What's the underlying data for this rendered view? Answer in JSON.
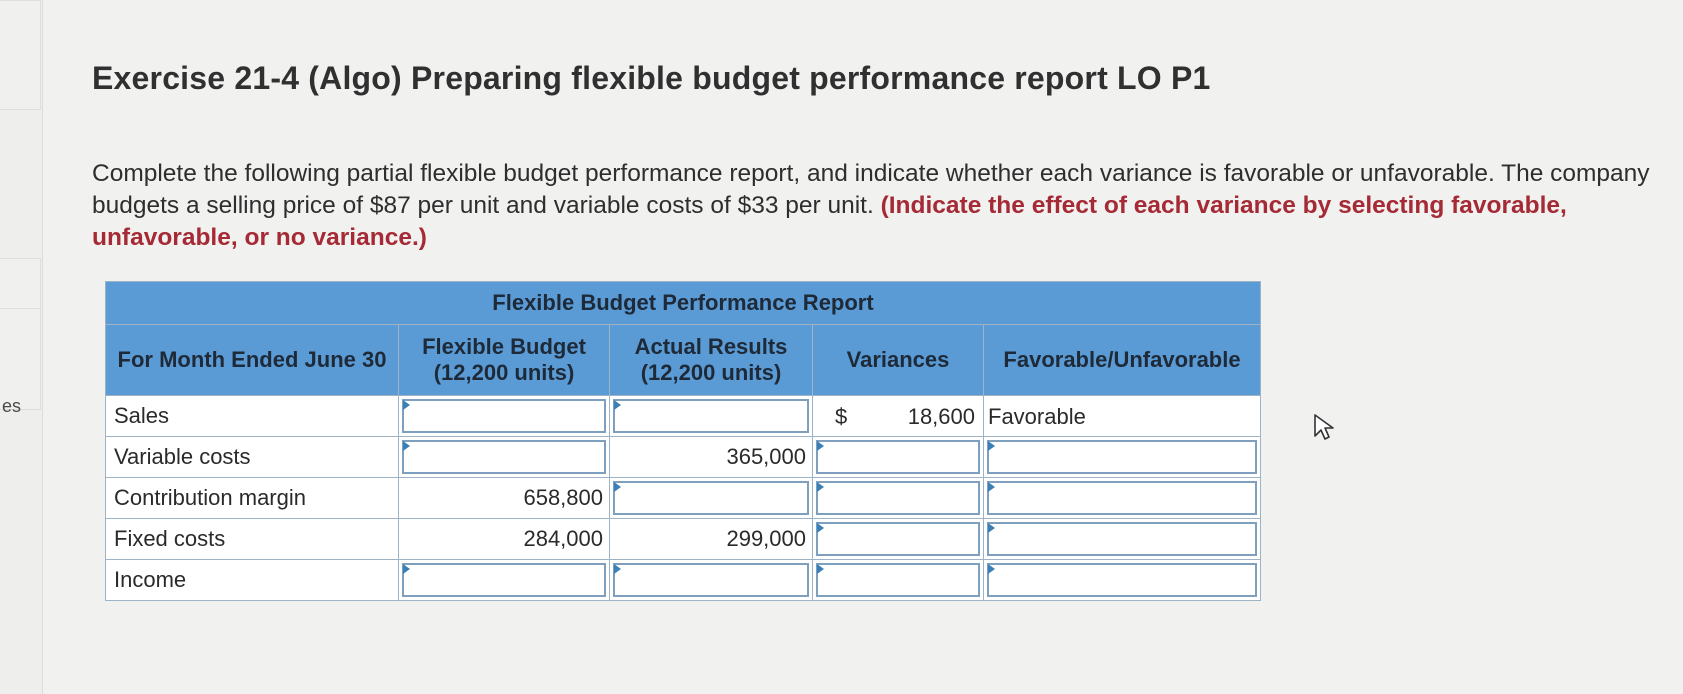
{
  "sidebar": {
    "partial_label": "es"
  },
  "page": {
    "title": "Exercise 21-4 (Algo) Preparing flexible budget performance report LO P1",
    "instructions_plain": "Complete the following partial flexible budget performance report, and indicate whether each variance is favorable or unfavorable. The company budgets a selling price of $87 per unit and variable costs of $33 per unit.",
    "instructions_highlight": "(Indicate the effect of each variance by selecting favorable, unfavorable, or no variance.)"
  },
  "report": {
    "title": "Flexible Budget Performance Report",
    "col_period": "For Month Ended June 30",
    "col_flex_line1": "Flexible Budget",
    "col_flex_line2": "(12,200 units)",
    "col_actual_line1": "Actual Results",
    "col_actual_line2": "(12,200 units)",
    "col_var": "Variances",
    "col_fav": "Favorable/Unfavorable",
    "rows": [
      {
        "label": "Sales",
        "flex": "",
        "actual": "",
        "var_symbol": "$",
        "var": "18,600",
        "fav": "Favorable"
      },
      {
        "label": "Variable costs",
        "flex": "",
        "actual": "365,000",
        "var_symbol": "",
        "var": "",
        "fav": ""
      },
      {
        "label": "Contribution margin",
        "flex": "658,800",
        "actual": "",
        "var_symbol": "",
        "var": "",
        "fav": ""
      },
      {
        "label": "Fixed costs",
        "flex": "284,000",
        "actual": "299,000",
        "var_symbol": "",
        "var": "",
        "fav": ""
      },
      {
        "label": "Income",
        "flex": "",
        "actual": "",
        "var_symbol": "",
        "var": "",
        "fav": ""
      }
    ]
  },
  "colors": {
    "header_bg": "#5b9bd5",
    "highlight_text": "#a52a35",
    "input_border": "#7f9fbe"
  }
}
